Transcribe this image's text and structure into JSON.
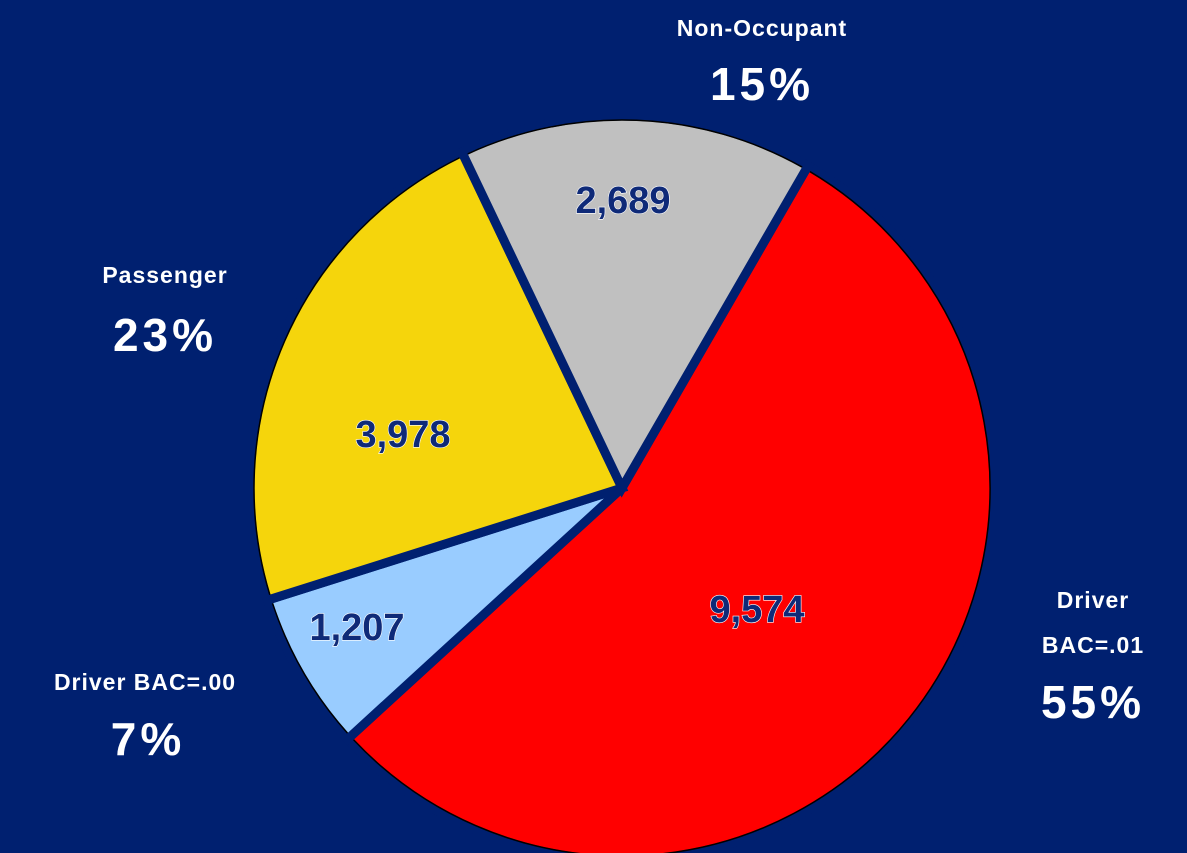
{
  "chart_data": {
    "type": "pie",
    "categories": [
      "Driver BAC=.01",
      "Driver BAC=.00",
      "Passenger",
      "Non-Occupant"
    ],
    "values": [
      9574,
      1207,
      3978,
      2689
    ],
    "value_labels": [
      "9,574",
      "1,207",
      "3,978",
      "2,689"
    ],
    "percents": [
      55,
      7,
      23,
      15
    ],
    "percent_labels": [
      "55%",
      "7%",
      "23%",
      "15%"
    ],
    "colors": [
      "#ff0000",
      "#99ccff",
      "#f5d50c",
      "#c0c0c0"
    ]
  }
}
